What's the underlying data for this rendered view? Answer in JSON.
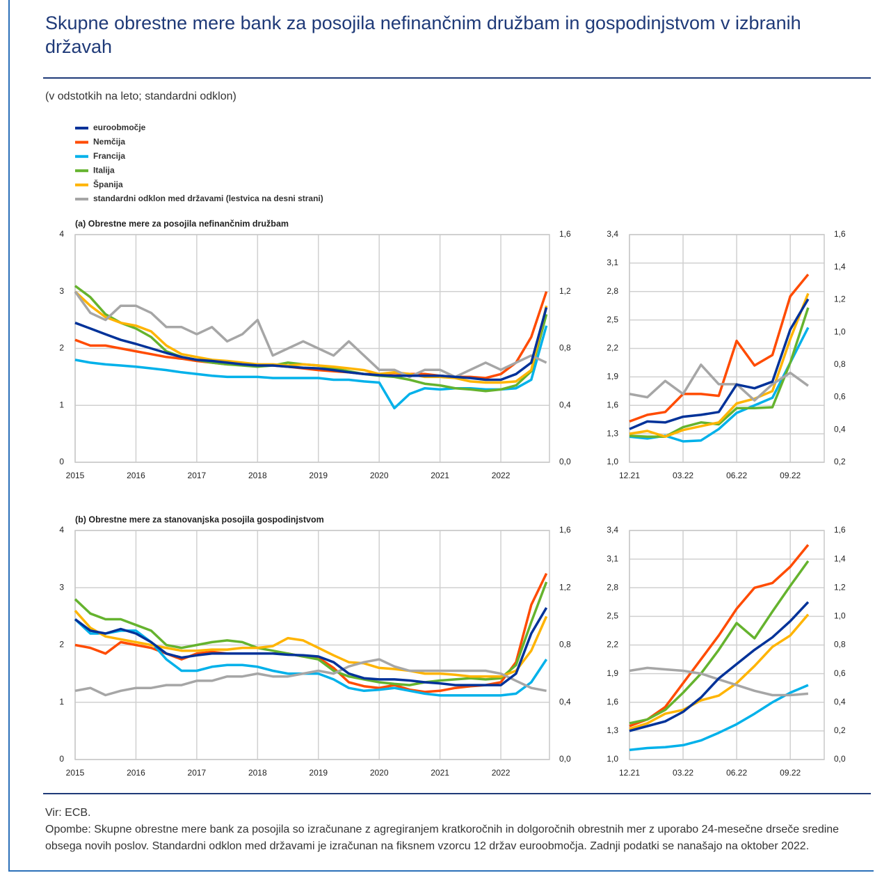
{
  "title": "Skupne obrestne mere bank za posojila nefinančnim družbam in gospodinjstvom v izbranih državah",
  "subtitle": "(v odstotkih na leto; standardni odklon)",
  "source": "Vir: ECB.",
  "notes": "Opombe: Skupne obrestne mere bank za posojila so izračunane z agregiranjem kratkoročnih in dolgoročnih obrestnih mer z uporabo 24-mesečne drseče sredine obsega novih poslov. Standardni odklon med državami je izračunan na fiksnem vzorcu 12 držav euroobmočja. Zadnji podatki se nanašajo na oktober 2022.",
  "chart_data": [
    {
      "type": "line",
      "title": "(a) Obrestne mere za posojila nefinančnim družbam",
      "grid": true,
      "x": [
        2015,
        2015.25,
        2015.5,
        2015.75,
        2016,
        2016.25,
        2016.5,
        2016.75,
        2017,
        2017.25,
        2017.5,
        2017.75,
        2018,
        2018.25,
        2018.5,
        2018.75,
        2019,
        2019.25,
        2019.5,
        2019.75,
        2020,
        2020.25,
        2020.5,
        2020.75,
        2021,
        2021.25,
        2021.5,
        2021.75,
        2022,
        2022.25,
        2022.5,
        2022.75
      ],
      "xlim": [
        2015,
        2022.8
      ],
      "xticks": [
        2015,
        2016,
        2017,
        2018,
        2019,
        2020,
        2021,
        2022
      ],
      "ylim": [
        0,
        4
      ],
      "yticks": [
        0,
        1,
        2,
        3,
        4
      ],
      "y2lim": [
        0,
        1.6
      ],
      "y2ticks": [
        {
          "value": 0,
          "label": "0,0"
        },
        {
          "value": 0.4,
          "label": "0,4"
        },
        {
          "value": 0.8,
          "label": "0,8"
        },
        {
          "value": 1.2,
          "label": "1,2"
        },
        {
          "value": 1.6,
          "label": "1,6"
        }
      ],
      "series": [
        {
          "name": "euroobmočje",
          "color": "#003299",
          "values": [
            2.45,
            2.35,
            2.25,
            2.15,
            2.08,
            2.0,
            1.92,
            1.85,
            1.8,
            1.78,
            1.75,
            1.72,
            1.7,
            1.7,
            1.68,
            1.66,
            1.65,
            1.62,
            1.58,
            1.55,
            1.53,
            1.52,
            1.52,
            1.52,
            1.52,
            1.5,
            1.48,
            1.45,
            1.45,
            1.55,
            1.75,
            2.72
          ]
        },
        {
          "name": "Nemčija",
          "color": "#ff4b00",
          "values": [
            2.15,
            2.05,
            2.05,
            2.0,
            1.95,
            1.9,
            1.85,
            1.82,
            1.78,
            1.75,
            1.72,
            1.72,
            1.72,
            1.7,
            1.68,
            1.65,
            1.62,
            1.6,
            1.58,
            1.55,
            1.55,
            1.57,
            1.55,
            1.55,
            1.52,
            1.5,
            1.5,
            1.48,
            1.55,
            1.75,
            2.2,
            3.0
          ]
        },
        {
          "name": "Francija",
          "color": "#00b1ea",
          "values": [
            1.8,
            1.75,
            1.72,
            1.7,
            1.68,
            1.65,
            1.62,
            1.58,
            1.55,
            1.52,
            1.5,
            1.5,
            1.5,
            1.48,
            1.48,
            1.48,
            1.48,
            1.45,
            1.45,
            1.42,
            1.4,
            0.95,
            1.2,
            1.3,
            1.28,
            1.3,
            1.3,
            1.28,
            1.28,
            1.3,
            1.45,
            2.4
          ]
        },
        {
          "name": "Italija",
          "color": "#65b32e",
          "values": [
            3.1,
            2.9,
            2.6,
            2.45,
            2.35,
            2.2,
            1.95,
            1.85,
            1.8,
            1.75,
            1.72,
            1.7,
            1.68,
            1.7,
            1.75,
            1.72,
            1.7,
            1.65,
            1.6,
            1.55,
            1.52,
            1.5,
            1.45,
            1.38,
            1.35,
            1.3,
            1.28,
            1.25,
            1.28,
            1.35,
            1.6,
            2.6
          ]
        },
        {
          "name": "Španija",
          "color": "#ffb400",
          "values": [
            3.0,
            2.75,
            2.55,
            2.45,
            2.4,
            2.3,
            2.05,
            1.9,
            1.85,
            1.8,
            1.78,
            1.75,
            1.72,
            1.72,
            1.7,
            1.72,
            1.7,
            1.68,
            1.65,
            1.62,
            1.55,
            1.58,
            1.55,
            1.5,
            1.5,
            1.48,
            1.42,
            1.4,
            1.4,
            1.42,
            1.62,
            2.75
          ]
        },
        {
          "name": "standardni odklon med državami (lestvica na desni strani)",
          "color": "#a6a6a6",
          "axis": "y2",
          "values": [
            1.2,
            1.05,
            1.0,
            1.1,
            1.1,
            1.05,
            0.95,
            0.95,
            0.9,
            0.95,
            0.85,
            0.9,
            1.0,
            0.75,
            0.8,
            0.85,
            0.8,
            0.75,
            0.85,
            0.75,
            0.65,
            0.65,
            0.6,
            0.65,
            0.65,
            0.6,
            0.65,
            0.7,
            0.65,
            0.7,
            0.75,
            0.7
          ]
        }
      ]
    },
    {
      "type": "line",
      "grid": true,
      "categories": [
        "12.21",
        null,
        null,
        "03.22",
        null,
        null,
        "06.22",
        null,
        null,
        "09.22",
        null
      ],
      "ylim": [
        1.0,
        3.4
      ],
      "yticks": [
        {
          "value": 1.0,
          "label": "1,0"
        },
        {
          "value": 1.3,
          "label": "1,3"
        },
        {
          "value": 1.6,
          "label": "1,6"
        },
        {
          "value": 1.9,
          "label": "1,9"
        },
        {
          "value": 2.2,
          "label": "2,2"
        },
        {
          "value": 2.5,
          "label": "2,5"
        },
        {
          "value": 2.8,
          "label": "2,8"
        },
        {
          "value": 3.1,
          "label": "3,1"
        },
        {
          "value": 3.4,
          "label": "3,4"
        }
      ],
      "y2lim": [
        0.2,
        1.6
      ],
      "y2ticks": [
        {
          "value": 0.2,
          "label": "0,2"
        },
        {
          "value": 0.4,
          "label": "0,4"
        },
        {
          "value": 0.6,
          "label": "0,6"
        },
        {
          "value": 0.8,
          "label": "0,8"
        },
        {
          "value": 1.0,
          "label": "1,0"
        },
        {
          "value": 1.2,
          "label": "1,2"
        },
        {
          "value": 1.4,
          "label": "1,4"
        },
        {
          "value": 1.6,
          "label": "1,6"
        }
      ],
      "series": [
        {
          "color": "#003299",
          "values": [
            1.35,
            1.43,
            1.42,
            1.48,
            1.5,
            1.53,
            1.82,
            1.78,
            1.85,
            2.4,
            2.72
          ]
        },
        {
          "color": "#ff4b00",
          "values": [
            1.43,
            1.5,
            1.53,
            1.72,
            1.72,
            1.7,
            2.28,
            2.02,
            2.13,
            2.75,
            2.98
          ]
        },
        {
          "color": "#00b1ea",
          "values": [
            1.27,
            1.25,
            1.28,
            1.22,
            1.23,
            1.35,
            1.52,
            1.6,
            1.68,
            2.05,
            2.42
          ]
        },
        {
          "color": "#65b32e",
          "values": [
            1.28,
            1.27,
            1.27,
            1.37,
            1.42,
            1.4,
            1.57,
            1.57,
            1.58,
            2.05,
            2.63
          ]
        },
        {
          "color": "#ffb400",
          "values": [
            1.3,
            1.33,
            1.27,
            1.34,
            1.38,
            1.42,
            1.62,
            1.67,
            1.75,
            2.3,
            2.78
          ]
        },
        {
          "color": "#a6a6a6",
          "axis": "y2",
          "values": [
            0.62,
            0.6,
            0.7,
            0.62,
            0.8,
            0.68,
            0.68,
            0.58,
            0.68,
            0.75,
            0.67
          ]
        }
      ]
    },
    {
      "type": "line",
      "title": "(b) Obrestne mere za stanovanjska posojila gospodinjstvom",
      "grid": true,
      "x": [
        2015,
        2015.25,
        2015.5,
        2015.75,
        2016,
        2016.25,
        2016.5,
        2016.75,
        2017,
        2017.25,
        2017.5,
        2017.75,
        2018,
        2018.25,
        2018.5,
        2018.75,
        2019,
        2019.25,
        2019.5,
        2019.75,
        2020,
        2020.25,
        2020.5,
        2020.75,
        2021,
        2021.25,
        2021.5,
        2021.75,
        2022,
        2022.25,
        2022.5,
        2022.75
      ],
      "xlim": [
        2015,
        2022.8
      ],
      "xticks": [
        2015,
        2016,
        2017,
        2018,
        2019,
        2020,
        2021,
        2022
      ],
      "ylim": [
        0,
        4
      ],
      "yticks": [
        0,
        1,
        2,
        3,
        4
      ],
      "y2lim": [
        0,
        1.6
      ],
      "y2ticks": [
        {
          "value": 0,
          "label": "0,0"
        },
        {
          "value": 0.4,
          "label": "0,4"
        },
        {
          "value": 0.8,
          "label": "0,8"
        },
        {
          "value": 1.2,
          "label": "1,2"
        },
        {
          "value": 1.6,
          "label": "1,6"
        }
      ],
      "series": [
        {
          "color": "#003299",
          "values": [
            2.45,
            2.25,
            2.2,
            2.28,
            2.2,
            2.05,
            1.85,
            1.78,
            1.82,
            1.85,
            1.85,
            1.85,
            1.85,
            1.85,
            1.83,
            1.82,
            1.8,
            1.7,
            1.5,
            1.42,
            1.4,
            1.4,
            1.38,
            1.35,
            1.33,
            1.3,
            1.3,
            1.3,
            1.3,
            1.5,
            2.2,
            2.65
          ]
        },
        {
          "color": "#ff4b00",
          "values": [
            2.0,
            1.95,
            1.85,
            2.05,
            2.0,
            1.95,
            1.85,
            1.75,
            1.85,
            1.88,
            1.85,
            1.85,
            1.85,
            1.85,
            1.85,
            1.8,
            1.78,
            1.6,
            1.35,
            1.28,
            1.25,
            1.3,
            1.22,
            1.18,
            1.2,
            1.25,
            1.28,
            1.3,
            1.35,
            1.7,
            2.7,
            3.25
          ]
        },
        {
          "color": "#00b1ea",
          "values": [
            2.45,
            2.2,
            2.2,
            2.25,
            2.25,
            2.05,
            1.75,
            1.55,
            1.55,
            1.62,
            1.65,
            1.65,
            1.62,
            1.55,
            1.5,
            1.5,
            1.5,
            1.4,
            1.25,
            1.2,
            1.22,
            1.25,
            1.2,
            1.15,
            1.12,
            1.12,
            1.12,
            1.12,
            1.12,
            1.15,
            1.35,
            1.75
          ]
        },
        {
          "color": "#65b32e",
          "values": [
            2.8,
            2.55,
            2.45,
            2.45,
            2.35,
            2.25,
            2.0,
            1.95,
            2.0,
            2.05,
            2.08,
            2.05,
            1.95,
            1.9,
            1.85,
            1.8,
            1.75,
            1.55,
            1.45,
            1.4,
            1.35,
            1.32,
            1.3,
            1.35,
            1.38,
            1.4,
            1.42,
            1.4,
            1.42,
            1.65,
            2.4,
            3.1
          ]
        },
        {
          "color": "#ffb400",
          "values": [
            2.6,
            2.3,
            2.15,
            2.1,
            2.05,
            2.0,
            1.95,
            1.9,
            1.9,
            1.92,
            1.92,
            1.95,
            1.95,
            1.98,
            2.12,
            2.08,
            1.95,
            1.82,
            1.7,
            1.68,
            1.6,
            1.58,
            1.55,
            1.5,
            1.5,
            1.48,
            1.45,
            1.45,
            1.45,
            1.55,
            1.9,
            2.5
          ]
        },
        {
          "color": "#a6a6a6",
          "axis": "y2",
          "values": [
            0.48,
            0.5,
            0.45,
            0.48,
            0.5,
            0.5,
            0.52,
            0.52,
            0.55,
            0.55,
            0.58,
            0.58,
            0.6,
            0.58,
            0.58,
            0.6,
            0.62,
            0.6,
            0.65,
            0.68,
            0.7,
            0.65,
            0.62,
            0.62,
            0.62,
            0.62,
            0.62,
            0.62,
            0.6,
            0.55,
            0.5,
            0.48
          ]
        }
      ]
    },
    {
      "type": "line",
      "grid": true,
      "categories": [
        "12.21",
        null,
        null,
        "03.22",
        null,
        null,
        "06.22",
        null,
        null,
        "09.22",
        null
      ],
      "ylim": [
        1.0,
        3.4
      ],
      "yticks": [
        {
          "value": 1.0,
          "label": "1,0"
        },
        {
          "value": 1.3,
          "label": "1,3"
        },
        {
          "value": 1.6,
          "label": "1,6"
        },
        {
          "value": 1.9,
          "label": "1,9"
        },
        {
          "value": 2.2,
          "label": "2,2"
        },
        {
          "value": 2.5,
          "label": "2,5"
        },
        {
          "value": 2.8,
          "label": "2,8"
        },
        {
          "value": 3.1,
          "label": "3,1"
        },
        {
          "value": 3.4,
          "label": "3,4"
        }
      ],
      "y2lim": [
        0,
        1.6
      ],
      "y2ticks": [
        {
          "value": 0,
          "label": "0,0"
        },
        {
          "value": 0.2,
          "label": "0,2"
        },
        {
          "value": 0.4,
          "label": "0,4"
        },
        {
          "value": 0.6,
          "label": "0,6"
        },
        {
          "value": 0.8,
          "label": "0,8"
        },
        {
          "value": 1.0,
          "label": "1,0"
        },
        {
          "value": 1.2,
          "label": "1,2"
        },
        {
          "value": 1.4,
          "label": "1,4"
        },
        {
          "value": 1.6,
          "label": "1,6"
        }
      ],
      "series": [
        {
          "color": "#003299",
          "values": [
            1.3,
            1.35,
            1.4,
            1.5,
            1.65,
            1.85,
            2.0,
            2.15,
            2.28,
            2.45,
            2.65
          ]
        },
        {
          "color": "#ff4b00",
          "values": [
            1.35,
            1.42,
            1.55,
            1.8,
            2.05,
            2.3,
            2.58,
            2.8,
            2.85,
            3.02,
            3.25
          ]
        },
        {
          "color": "#00b1ea",
          "values": [
            1.1,
            1.12,
            1.13,
            1.15,
            1.2,
            1.28,
            1.37,
            1.48,
            1.6,
            1.7,
            1.78
          ]
        },
        {
          "color": "#65b32e",
          "values": [
            1.38,
            1.42,
            1.52,
            1.7,
            1.9,
            2.15,
            2.43,
            2.27,
            2.55,
            2.82,
            3.08
          ]
        },
        {
          "color": "#ffb400",
          "values": [
            1.32,
            1.38,
            1.48,
            1.52,
            1.62,
            1.67,
            1.8,
            1.98,
            2.18,
            2.3,
            2.52
          ]
        },
        {
          "color": "#a6a6a6",
          "axis": "y2",
          "values": [
            0.62,
            0.64,
            0.63,
            0.62,
            0.6,
            0.56,
            0.52,
            0.48,
            0.45,
            0.45,
            0.46
          ]
        }
      ]
    }
  ]
}
